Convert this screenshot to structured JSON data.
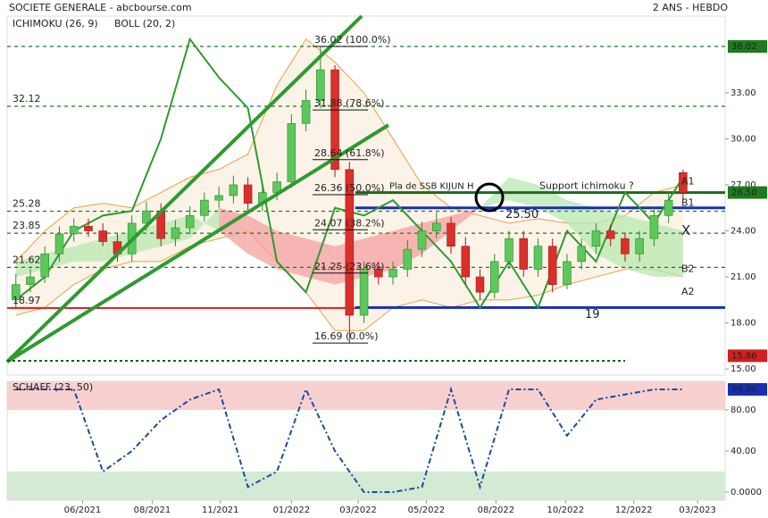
{
  "chart_data": [
    {
      "type": "candlestick",
      "title": "SOCIETE GENERALE - abcbourse.com",
      "subtitle": "2 ANS - HEBDO",
      "indicator_labels": [
        {
          "text": "ICHIMOKU (26, 9)",
          "color": "#222222"
        },
        {
          "text": "BOLL (20, 2)",
          "color": "#e8a040"
        }
      ],
      "xlim": [
        -0.6,
        48.9
      ],
      "ylim": [
        14.6,
        38
      ],
      "xticks": [
        {
          "value": 4.6,
          "label": "06/2021"
        },
        {
          "value": 9.4,
          "label": "08/2021"
        },
        {
          "value": 14.1,
          "label": "11/2021"
        },
        {
          "value": 19.0,
          "label": "01/2022"
        },
        {
          "value": 23.6,
          "label": "03/2022"
        },
        {
          "value": 28.3,
          "label": "05/2022"
        },
        {
          "value": 33.1,
          "label": "08/2022"
        },
        {
          "value": 37.9,
          "label": "10/2022"
        },
        {
          "value": 42.6,
          "label": "12/2022"
        },
        {
          "value": 47.0,
          "label": "03/2023"
        }
      ],
      "yticks": [
        {
          "value": 33,
          "label": "33.00"
        },
        {
          "value": 30,
          "label": "30.00"
        },
        {
          "value": 27,
          "label": "27.00"
        },
        {
          "value": 24,
          "label": "24.00"
        },
        {
          "value": 21,
          "label": "21.00"
        },
        {
          "value": 18,
          "label": "18.00"
        },
        {
          "value": 15,
          "label": "15.00"
        }
      ],
      "up_color": "#5cc85c",
      "down_color": "#d9302a",
      "open": [
        19.5,
        20.5,
        21.0,
        22.5,
        23.8,
        24.3,
        24.0,
        23.3,
        22.5,
        24.5,
        25.3,
        23.5,
        24.2,
        25.0,
        26.0,
        26.3,
        27.0,
        25.8,
        26.5,
        27.2,
        31.0,
        32.5,
        34.5,
        28.0,
        18.5,
        21.5,
        21.0,
        21.5,
        22.8,
        24.0,
        24.5,
        23.0,
        21.0,
        20.0,
        22.0,
        23.5,
        21.5,
        23.0,
        20.5,
        22.0,
        23.0,
        24.0,
        23.5,
        22.5,
        23.5,
        25.0,
        27.8
      ],
      "high": [
        21.2,
        21.5,
        23.0,
        24.3,
        24.8,
        24.8,
        24.5,
        23.8,
        25.0,
        25.9,
        25.8,
        24.7,
        25.6,
        26.5,
        26.9,
        27.6,
        27.5,
        27.0,
        27.8,
        31.6,
        33.2,
        36.02,
        34.8,
        28.5,
        22.0,
        22.0,
        22.0,
        23.4,
        24.6,
        25.2,
        24.9,
        23.6,
        21.5,
        22.5,
        24.0,
        24.0,
        23.5,
        23.5,
        22.5,
        23.5,
        24.5,
        24.4,
        23.9,
        24.0,
        25.6,
        26.6,
        28.0
      ],
      "low": [
        18.9,
        20.0,
        20.6,
        22.0,
        23.3,
        23.6,
        23.0,
        22.0,
        22.0,
        24.0,
        23.0,
        23.0,
        23.8,
        24.6,
        25.5,
        25.8,
        25.3,
        25.3,
        26.0,
        26.8,
        30.5,
        32.0,
        27.5,
        16.69,
        18.0,
        20.5,
        20.5,
        21.0,
        22.3,
        23.5,
        22.5,
        20.5,
        19.5,
        19.6,
        21.5,
        21.0,
        21.0,
        20.0,
        20.2,
        21.5,
        22.5,
        23.0,
        22.0,
        22.0,
        23.0,
        24.5,
        26.0
      ],
      "close": [
        20.5,
        21.0,
        22.5,
        23.8,
        24.3,
        24.0,
        23.3,
        22.5,
        24.5,
        25.3,
        23.5,
        24.2,
        25.0,
        26.0,
        26.3,
        27.0,
        25.8,
        26.5,
        27.2,
        31.0,
        32.5,
        34.5,
        28.0,
        18.5,
        21.5,
        21.0,
        21.5,
        22.8,
        24.0,
        24.5,
        23.0,
        21.0,
        20.0,
        22.0,
        23.5,
        21.5,
        23.0,
        20.5,
        22.0,
        23.0,
        24.0,
        23.5,
        22.5,
        23.5,
        25.0,
        26.0,
        26.5
      ],
      "indicator_x": [
        0,
        2,
        4,
        6,
        8,
        10,
        12,
        14,
        16,
        18,
        20,
        22,
        24,
        26,
        28,
        30,
        32,
        34,
        36,
        38,
        40,
        42,
        44,
        46
      ],
      "boll_upper": [
        22.0,
        24.0,
        25.5,
        25.8,
        25.5,
        26.5,
        27.5,
        28.0,
        29.0,
        33.5,
        36.5,
        35.0,
        33.0,
        30.0,
        27.0,
        25.5,
        25.0,
        24.5,
        24.8,
        24.5,
        24.5,
        25.0,
        26.5,
        27.0
      ],
      "boll_lower": [
        18.5,
        19.0,
        20.5,
        21.5,
        22.0,
        22.0,
        23.0,
        23.5,
        24.0,
        22.0,
        20.0,
        17.5,
        17.5,
        19.0,
        19.5,
        19.0,
        19.5,
        19.5,
        19.8,
        20.5,
        21.0,
        21.5,
        21.5,
        21.0
      ],
      "span_a": [
        22,
        22.5,
        23,
        23.5,
        24,
        24.5,
        25,
        24,
        22.5,
        21.5,
        21,
        20.5,
        21,
        21.5,
        22.5,
        24,
        25.5,
        27.5,
        27,
        26,
        25.5,
        25,
        24.5,
        24
      ],
      "span_b": [
        21,
        21.5,
        22,
        22,
        22.5,
        23,
        23.5,
        25.5,
        25,
        24,
        23.5,
        23,
        23.5,
        24,
        24.5,
        25,
        25.5,
        26,
        25.5,
        24.5,
        22.5,
        21.5,
        21,
        21
      ],
      "chikou": [
        19.5,
        21,
        24,
        25,
        25.3,
        30,
        36.5,
        34,
        32,
        22,
        20,
        25.5,
        25,
        26,
        24,
        22,
        19,
        22,
        19,
        24,
        22,
        26.5,
        24.5,
        27.5
      ],
      "boll_color": "#e8a040",
      "chikou_color": "#2f9a2f",
      "cloud_up_color": "#b8e8b0",
      "cloud_down_color": "#f4a0a0",
      "levels": [
        {
          "value": 36.02,
          "color": "#1f7a1f",
          "dash": true
        },
        {
          "value": 32.12,
          "label": "32.12",
          "color": "#1f7a1f",
          "dash": true
        },
        {
          "value": 25.28,
          "label": "25.28",
          "color": "#1f7a1f",
          "dash": true
        },
        {
          "value": 23.85,
          "label": "23.85",
          "color": "#1f7a1f",
          "dash": true
        },
        {
          "value": 21.62,
          "label": "21.62",
          "color": "#1f7a1f",
          "dash": true
        },
        {
          "value": 18.97,
          "label": "18.97",
          "color": "#d02020",
          "dash": false,
          "to": 23.4
        }
      ],
      "lines": [
        {
          "value": 25.5,
          "label": "25.50",
          "color": "#1a2fb0",
          "from": 23.4
        },
        {
          "value": 19,
          "label": "19",
          "color": "#1a2fb0",
          "from": 23.4
        },
        {
          "value": 26.5,
          "label": "Support ichimoku ?",
          "color": "#1a6a1a",
          "from": 23.4
        }
      ],
      "fib_levels": [
        {
          "value": 36.02,
          "label": "36.02  (100.0%)"
        },
        {
          "value": 31.88,
          "label": "31.88  (78.6%)"
        },
        {
          "value": 28.64,
          "label": "28.64  (61.8%)"
        },
        {
          "value": 26.36,
          "label": "26.36  (50.0%)"
        },
        {
          "value": 24.07,
          "label": "24.07  (38.2%)"
        },
        {
          "value": 21.25,
          "label": "21.25  (23.6%)"
        },
        {
          "value": 16.69,
          "label": "16.69  (0.0%)"
        }
      ],
      "annotation": "Pla de SSB KIJUN H",
      "wave_labels": [
        {
          "text": "A1",
          "value": 27.2,
          "color": "#1a2fb0"
        },
        {
          "text": "B1",
          "value": 25.8,
          "color": "#c02020"
        },
        {
          "text": "X",
          "value": 24.0,
          "color": "#2f9a2f"
        },
        {
          "text": "B2",
          "value": 21.5,
          "color": "#c02020"
        },
        {
          "text": "A2",
          "value": 20.0,
          "color": "#1a2fb0"
        }
      ],
      "price_boxes": [
        {
          "value": 36.02,
          "color": "#1f7a1f"
        },
        {
          "value": 26.5,
          "label": "26.50",
          "color": "#1f7a1f"
        },
        {
          "value": 15.86,
          "color": "#d02020"
        }
      ]
    },
    {
      "type": "line",
      "title": "SCHAFF (23, 50)",
      "ylim": [
        -7.8,
        107.8
      ],
      "yticks": [
        {
          "value": 80,
          "label": "80.00"
        },
        {
          "value": 40,
          "label": "40.00"
        },
        {
          "value": 0,
          "label": "0.0000"
        }
      ],
      "last_box": {
        "value": 99.99,
        "color": "#1a2fb0"
      },
      "x": [
        0,
        2,
        4,
        6,
        8,
        10,
        12,
        14,
        16,
        18,
        20,
        22,
        24,
        26,
        28,
        30,
        32,
        34,
        36,
        38,
        40,
        42,
        44,
        46
      ],
      "values": [
        99.99,
        99.99,
        99.99,
        20,
        40,
        70,
        90,
        99.99,
        5,
        20,
        99.99,
        40,
        0,
        0,
        5,
        99.99,
        5,
        99.99,
        99.99,
        55,
        90,
        95,
        99.99,
        99.99
      ],
      "color": "#1a4aa0",
      "zones": [
        {
          "from": 80,
          "to": 107.8,
          "color": "#f8d0d0"
        },
        {
          "from": -7.8,
          "to": 20,
          "color": "#d4ead4"
        }
      ]
    }
  ]
}
